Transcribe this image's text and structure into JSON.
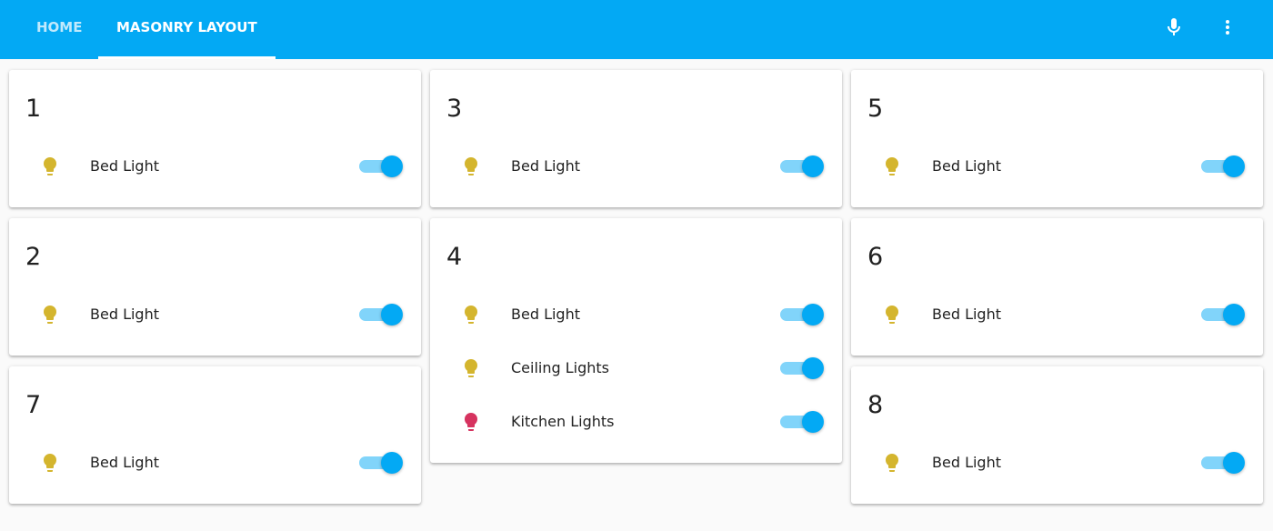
{
  "header": {
    "tabs": [
      "HOME",
      "MASONRY LAYOUT"
    ],
    "active_tab": 1
  },
  "columns": [
    [
      {
        "title": "1",
        "entities": [
          {
            "name": "Bed Light",
            "icon_color": "#d4b52e"
          }
        ]
      },
      {
        "title": "2",
        "entities": [
          {
            "name": "Bed Light",
            "icon_color": "#d4b52e"
          }
        ]
      },
      {
        "title": "7",
        "entities": [
          {
            "name": "Bed Light",
            "icon_color": "#d4b52e"
          }
        ]
      }
    ],
    [
      {
        "title": "3",
        "entities": [
          {
            "name": "Bed Light",
            "icon_color": "#d4b52e"
          }
        ]
      },
      {
        "title": "4",
        "entities": [
          {
            "name": "Bed Light",
            "icon_color": "#d4b52e"
          },
          {
            "name": "Ceiling Lights",
            "icon_color": "#d4b52e"
          },
          {
            "name": "Kitchen Lights",
            "icon_color": "#d6335f"
          }
        ]
      }
    ],
    [
      {
        "title": "5",
        "entities": [
          {
            "name": "Bed Light",
            "icon_color": "#d4b52e"
          }
        ]
      },
      {
        "title": "6",
        "entities": [
          {
            "name": "Bed Light",
            "icon_color": "#d4b52e"
          }
        ]
      },
      {
        "title": "8",
        "entities": [
          {
            "name": "Bed Light",
            "icon_color": "#d4b52e"
          }
        ]
      }
    ]
  ]
}
